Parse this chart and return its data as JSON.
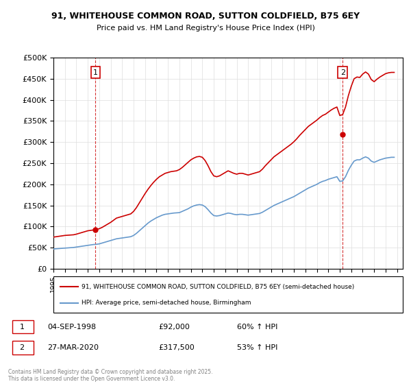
{
  "title_line1": "91, WHITEHOUSE COMMON ROAD, SUTTON COLDFIELD, B75 6EY",
  "title_line2": "Price paid vs. HM Land Registry's House Price Index (HPI)",
  "ylabel_ticks": [
    "£0",
    "£50K",
    "£100K",
    "£150K",
    "£200K",
    "£250K",
    "£300K",
    "£350K",
    "£400K",
    "£450K",
    "£500K"
  ],
  "ytick_values": [
    0,
    50000,
    100000,
    150000,
    200000,
    250000,
    300000,
    350000,
    400000,
    450000,
    500000
  ],
  "ylim": [
    0,
    500000
  ],
  "xlim_start": 1995.0,
  "xlim_end": 2025.5,
  "marker1_x": 1998.67,
  "marker1_y": 92000,
  "marker2_x": 2020.25,
  "marker2_y": 317500,
  "legend_line1": "91, WHITEHOUSE COMMON ROAD, SUTTON COLDFIELD, B75 6EY (semi-detached house)",
  "legend_line2": "HPI: Average price, semi-detached house, Birmingham",
  "annotation1_label": "1",
  "annotation2_label": "2",
  "table_row1": "1    04-SEP-1998    £92,000    60% ↑ HPI",
  "table_row2": "2    27-MAR-2020    £317,500    53% ↑ HPI",
  "footnote": "Contains HM Land Registry data © Crown copyright and database right 2025.\nThis data is licensed under the Open Government Licence v3.0.",
  "line_color_red": "#cc0000",
  "line_color_blue": "#6699cc",
  "vline_color": "#cc0000",
  "bg_color": "#ffffff",
  "grid_color": "#dddddd",
  "xtick_years": [
    1995,
    1996,
    1997,
    1998,
    1999,
    2000,
    2001,
    2002,
    2003,
    2004,
    2005,
    2006,
    2007,
    2008,
    2009,
    2010,
    2011,
    2012,
    2013,
    2014,
    2015,
    2016,
    2017,
    2018,
    2019,
    2020,
    2021,
    2022,
    2023,
    2024,
    2025
  ],
  "hpi_data": {
    "years": [
      1995.0,
      1995.25,
      1995.5,
      1995.75,
      1996.0,
      1996.25,
      1996.5,
      1996.75,
      1997.0,
      1997.25,
      1997.5,
      1997.75,
      1998.0,
      1998.25,
      1998.5,
      1998.75,
      1999.0,
      1999.25,
      1999.5,
      1999.75,
      2000.0,
      2000.25,
      2000.5,
      2000.75,
      2001.0,
      2001.25,
      2001.5,
      2001.75,
      2002.0,
      2002.25,
      2002.5,
      2002.75,
      2003.0,
      2003.25,
      2003.5,
      2003.75,
      2004.0,
      2004.25,
      2004.5,
      2004.75,
      2005.0,
      2005.25,
      2005.5,
      2005.75,
      2006.0,
      2006.25,
      2006.5,
      2006.75,
      2007.0,
      2007.25,
      2007.5,
      2007.75,
      2008.0,
      2008.25,
      2008.5,
      2008.75,
      2009.0,
      2009.25,
      2009.5,
      2009.75,
      2010.0,
      2010.25,
      2010.5,
      2010.75,
      2011.0,
      2011.25,
      2011.5,
      2011.75,
      2012.0,
      2012.25,
      2012.5,
      2012.75,
      2013.0,
      2013.25,
      2013.5,
      2013.75,
      2014.0,
      2014.25,
      2014.5,
      2014.75,
      2015.0,
      2015.25,
      2015.5,
      2015.75,
      2016.0,
      2016.25,
      2016.5,
      2016.75,
      2017.0,
      2017.25,
      2017.5,
      2017.75,
      2018.0,
      2018.25,
      2018.5,
      2018.75,
      2019.0,
      2019.25,
      2019.5,
      2019.75,
      2020.0,
      2020.25,
      2020.5,
      2020.75,
      2021.0,
      2021.25,
      2021.5,
      2021.75,
      2022.0,
      2022.25,
      2022.5,
      2022.75,
      2023.0,
      2023.25,
      2023.5,
      2023.75,
      2024.0,
      2024.25,
      2024.5,
      2024.75
    ],
    "values": [
      47000,
      47500,
      48000,
      48500,
      49000,
      49500,
      50000,
      50500,
      51500,
      52500,
      53500,
      54500,
      55500,
      56500,
      57500,
      58000,
      59000,
      61000,
      63000,
      65000,
      67000,
      69000,
      71000,
      72000,
      73000,
      74000,
      75000,
      76000,
      79000,
      84000,
      90000,
      96000,
      102000,
      108000,
      113000,
      117000,
      121000,
      124000,
      127000,
      129000,
      130000,
      131000,
      132000,
      132500,
      133000,
      136000,
      139000,
      142000,
      146000,
      149000,
      151000,
      152000,
      151000,
      147000,
      140000,
      132000,
      126000,
      125000,
      126000,
      128000,
      130000,
      132000,
      131000,
      129000,
      128000,
      129000,
      129000,
      128000,
      127000,
      128000,
      129000,
      130000,
      131000,
      134000,
      138000,
      142000,
      146000,
      150000,
      153000,
      156000,
      159000,
      162000,
      165000,
      168000,
      171000,
      175000,
      179000,
      183000,
      187000,
      191000,
      194000,
      197000,
      200000,
      204000,
      207000,
      209000,
      212000,
      214000,
      216000,
      218000,
      207000,
      208000,
      218000,
      233000,
      245000,
      255000,
      258000,
      258000,
      262000,
      265000,
      262000,
      255000,
      252000,
      255000,
      258000,
      260000,
      262000,
      263000,
      264000,
      264000
    ]
  },
  "property_data": {
    "years": [
      1995.0,
      1995.25,
      1995.5,
      1995.75,
      1996.0,
      1996.25,
      1996.5,
      1996.75,
      1997.0,
      1997.25,
      1997.5,
      1997.75,
      1998.0,
      1998.25,
      1998.5,
      1998.75,
      1999.0,
      1999.25,
      1999.5,
      1999.75,
      2000.0,
      2000.25,
      2000.5,
      2000.75,
      2001.0,
      2001.25,
      2001.5,
      2001.75,
      2002.0,
      2002.25,
      2002.5,
      2002.75,
      2003.0,
      2003.25,
      2003.5,
      2003.75,
      2004.0,
      2004.25,
      2004.5,
      2004.75,
      2005.0,
      2005.25,
      2005.5,
      2005.75,
      2006.0,
      2006.25,
      2006.5,
      2006.75,
      2007.0,
      2007.25,
      2007.5,
      2007.75,
      2008.0,
      2008.25,
      2008.5,
      2008.75,
      2009.0,
      2009.25,
      2009.5,
      2009.75,
      2010.0,
      2010.25,
      2010.5,
      2010.75,
      2011.0,
      2011.25,
      2011.5,
      2011.75,
      2012.0,
      2012.25,
      2012.5,
      2012.75,
      2013.0,
      2013.25,
      2013.5,
      2013.75,
      2014.0,
      2014.25,
      2014.5,
      2014.75,
      2015.0,
      2015.25,
      2015.5,
      2015.75,
      2016.0,
      2016.25,
      2016.5,
      2016.75,
      2017.0,
      2017.25,
      2017.5,
      2017.75,
      2018.0,
      2018.25,
      2018.5,
      2018.75,
      2019.0,
      2019.25,
      2019.5,
      2019.75,
      2020.0,
      2020.25,
      2020.5,
      2020.75,
      2021.0,
      2021.25,
      2021.5,
      2021.75,
      2022.0,
      2022.25,
      2022.5,
      2022.75,
      2023.0,
      2023.25,
      2023.5,
      2023.75,
      2024.0,
      2024.25,
      2024.5,
      2024.75
    ],
    "values": [
      75000,
      76000,
      77000,
      78000,
      79000,
      79500,
      80000,
      80500,
      82000,
      84000,
      86000,
      88000,
      90000,
      91000,
      92000,
      93000,
      95000,
      98000,
      102000,
      106000,
      110000,
      115000,
      120000,
      122000,
      124000,
      126000,
      128000,
      130000,
      136000,
      145000,
      156000,
      167000,
      178000,
      188000,
      197000,
      205000,
      212000,
      218000,
      222000,
      226000,
      228000,
      230000,
      231000,
      232000,
      235000,
      240000,
      246000,
      252000,
      258000,
      262000,
      265000,
      266000,
      264000,
      256000,
      244000,
      230000,
      220000,
      218000,
      220000,
      224000,
      228000,
      232000,
      229000,
      226000,
      224000,
      226000,
      226000,
      224000,
      222000,
      224000,
      226000,
      228000,
      230000,
      236000,
      244000,
      251000,
      258000,
      265000,
      270000,
      275000,
      280000,
      285000,
      290000,
      295000,
      301000,
      308000,
      316000,
      323000,
      330000,
      337000,
      342000,
      347000,
      352000,
      358000,
      363000,
      366000,
      371000,
      376000,
      380000,
      383000,
      363000,
      365000,
      383000,
      410000,
      432000,
      450000,
      454000,
      453000,
      461000,
      466000,
      461000,
      448000,
      443000,
      449000,
      454000,
      458000,
      462000,
      464000,
      465000,
      465000
    ]
  }
}
